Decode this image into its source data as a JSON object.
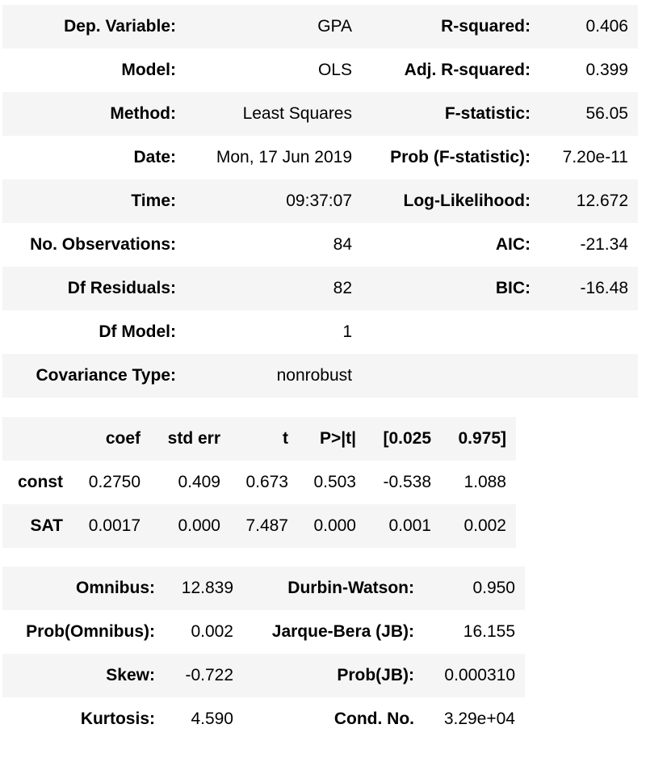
{
  "model_summary": {
    "rows": [
      {
        "l1": "Dep. Variable:",
        "v1": "GPA",
        "l2": "R-squared:",
        "v2": "0.406"
      },
      {
        "l1": "Model:",
        "v1": "OLS",
        "l2": "Adj. R-squared:",
        "v2": "0.399"
      },
      {
        "l1": "Method:",
        "v1": "Least Squares",
        "l2": "F-statistic:",
        "v2": "56.05"
      },
      {
        "l1": "Date:",
        "v1": "Mon, 17 Jun 2019",
        "l2": "Prob (F-statistic):",
        "v2": "7.20e-11"
      },
      {
        "l1": "Time:",
        "v1": "09:37:07",
        "l2": "Log-Likelihood:",
        "v2": "12.672"
      },
      {
        "l1": "No. Observations:",
        "v1": "84",
        "l2": "AIC:",
        "v2": "-21.34"
      },
      {
        "l1": "Df Residuals:",
        "v1": "82",
        "l2": "BIC:",
        "v2": "-16.48"
      },
      {
        "l1": "Df Model:",
        "v1": "1",
        "l2": "",
        "v2": ""
      },
      {
        "l1": "Covariance Type:",
        "v1": "nonrobust",
        "l2": "",
        "v2": ""
      }
    ]
  },
  "coef_table": {
    "headers": [
      "",
      "coef",
      "std err",
      "t",
      "P>|t|",
      "[0.025",
      "0.975]"
    ],
    "rows": [
      [
        "const",
        "0.2750",
        "0.409",
        "0.673",
        "0.503",
        "-0.538",
        "1.088"
      ],
      [
        "SAT",
        "0.0017",
        "0.000",
        "7.487",
        "0.000",
        "0.001",
        "0.002"
      ]
    ]
  },
  "diagnostics": {
    "rows": [
      {
        "l1": "Omnibus:",
        "v1": "12.839",
        "l2": "Durbin-Watson:",
        "v2": "0.950"
      },
      {
        "l1": "Prob(Omnibus):",
        "v1": "0.002",
        "l2": "Jarque-Bera (JB):",
        "v2": "16.155"
      },
      {
        "l1": "Skew:",
        "v1": "-0.722",
        "l2": "Prob(JB):",
        "v2": "0.000310"
      },
      {
        "l1": "Kurtosis:",
        "v1": "4.590",
        "l2": "Cond. No.",
        "v2": "3.29e+04"
      }
    ]
  },
  "colors": {
    "row_shade": "#f5f5f5",
    "background": "#ffffff",
    "text": "#000000"
  }
}
